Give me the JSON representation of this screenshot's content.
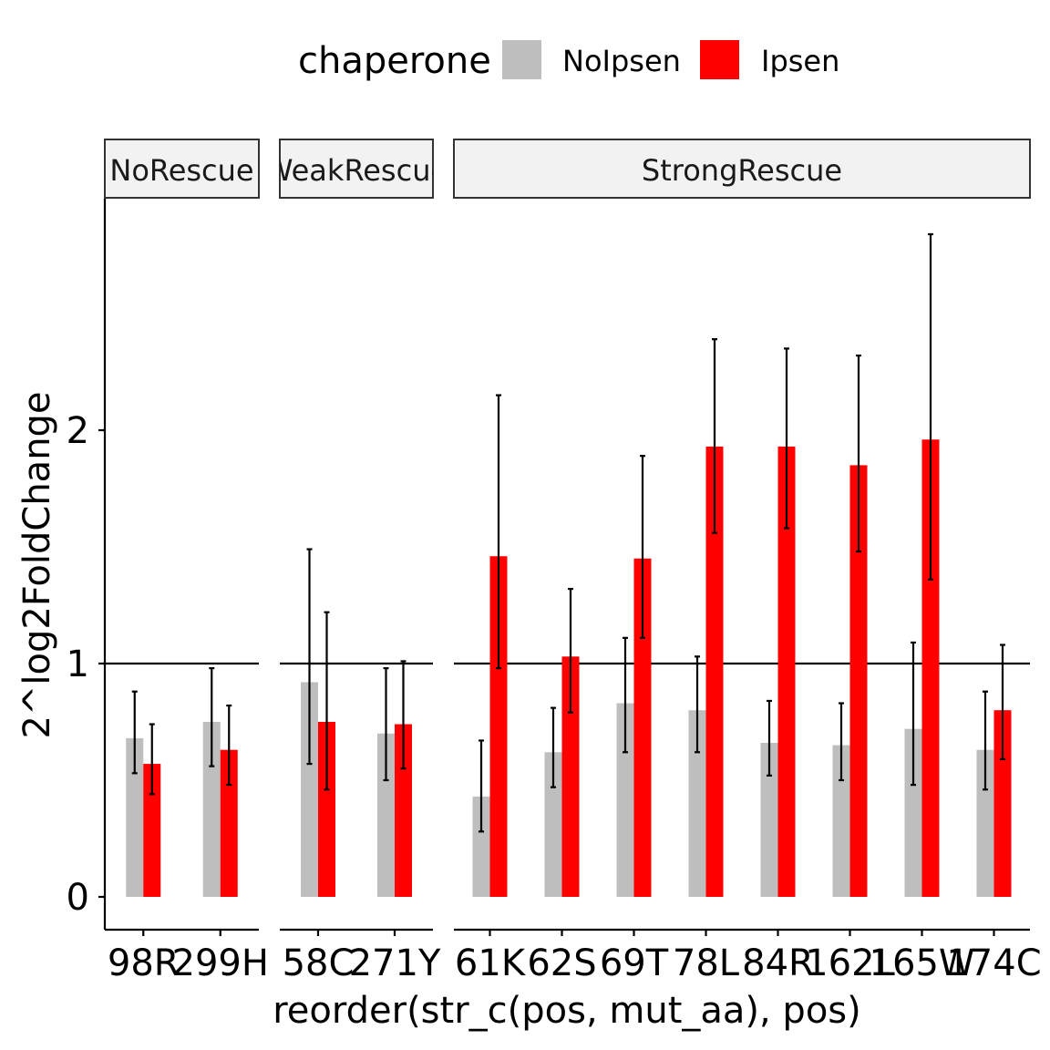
{
  "chart_data": {
    "type": "bar",
    "facet_by": "rescue class",
    "legend": {
      "title": "chaperone",
      "position": "top",
      "entries": [
        {
          "label": "NoIpsen",
          "color": "#bebebe"
        },
        {
          "label": "Ipsen",
          "color": "#ff0000"
        }
      ]
    },
    "xlabel": "reorder(str_c(pos, mut_aa), pos)",
    "ylabel": "2^log2FoldChange",
    "ylim": [
      -0.14,
      2.98
    ],
    "yticks": [
      0,
      1,
      2
    ],
    "reference_line": 1,
    "grid": false,
    "series": [
      {
        "name": "NoIpsen",
        "color": "#bebebe"
      },
      {
        "name": "Ipsen",
        "color": "#ff0000"
      }
    ],
    "panels": [
      {
        "label": "NoRescue",
        "categories": [
          "98R",
          "299H"
        ],
        "values": [
          [
            0.68,
            0.57
          ],
          [
            0.75,
            0.63
          ]
        ],
        "errors": [
          [
            [
              0.53,
              0.88
            ],
            [
              0.44,
              0.74
            ]
          ],
          [
            [
              0.56,
              0.98
            ],
            [
              0.48,
              0.82
            ]
          ]
        ]
      },
      {
        "label": "WeakRescue",
        "categories": [
          "58C",
          "271Y"
        ],
        "values": [
          [
            0.92,
            0.75
          ],
          [
            0.7,
            0.74
          ]
        ],
        "errors": [
          [
            [
              0.57,
              1.49
            ],
            [
              0.46,
              1.22
            ]
          ],
          [
            [
              0.5,
              0.98
            ],
            [
              0.55,
              1.01
            ]
          ]
        ]
      },
      {
        "label": "StrongRescue",
        "categories": [
          "61K",
          "62S",
          "69T",
          "78L",
          "84R",
          "162L",
          "165W",
          "174C"
        ],
        "values": [
          [
            0.43,
            1.46
          ],
          [
            0.62,
            1.03
          ],
          [
            0.83,
            1.45
          ],
          [
            0.8,
            1.93
          ],
          [
            0.66,
            1.93
          ],
          [
            0.65,
            1.85
          ],
          [
            0.72,
            1.96
          ],
          [
            0.63,
            0.8
          ]
        ],
        "errors": [
          [
            [
              0.28,
              0.67
            ],
            [
              0.98,
              2.15
            ]
          ],
          [
            [
              0.47,
              0.81
            ],
            [
              0.79,
              1.32
            ]
          ],
          [
            [
              0.62,
              1.11
            ],
            [
              1.11,
              1.89
            ]
          ],
          [
            [
              0.62,
              1.03
            ],
            [
              1.56,
              2.39
            ]
          ],
          [
            [
              0.52,
              0.84
            ],
            [
              1.58,
              2.35
            ]
          ],
          [
            [
              0.5,
              0.83
            ],
            [
              1.48,
              2.32
            ]
          ],
          [
            [
              0.48,
              1.09
            ],
            [
              1.36,
              2.84
            ]
          ],
          [
            [
              0.46,
              0.88
            ],
            [
              0.59,
              1.08
            ]
          ]
        ]
      }
    ]
  }
}
